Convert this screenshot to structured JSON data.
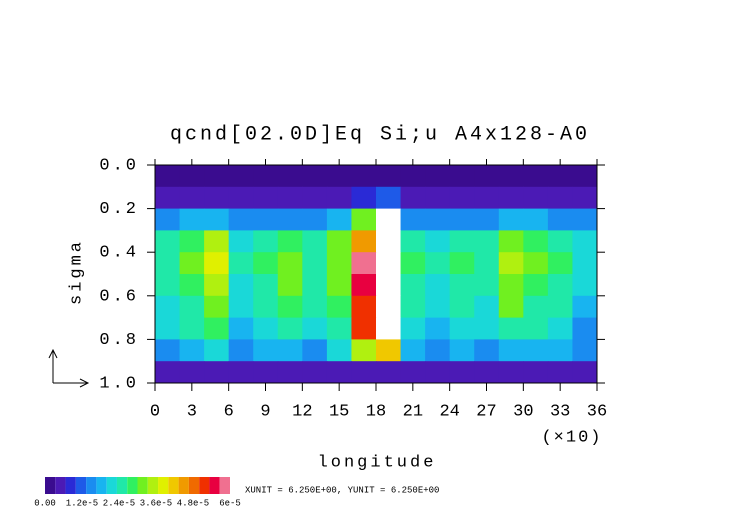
{
  "chart_data": {
    "type": "heatmap",
    "title": "qcnd[02.0D]Eq Si;u A4x128-A0",
    "x_label": "longitude",
    "x_scale_note": "(×10)",
    "y_label": "sigma",
    "footer": "XUNIT = 6.250E+00, YUNIT = 6.250E+00",
    "xlim": [
      0,
      36
    ],
    "xticks": [
      0,
      3,
      6,
      9,
      12,
      15,
      18,
      21,
      24,
      27,
      30,
      33,
      36
    ],
    "ylim": [
      1,
      0
    ],
    "yticks": [
      {
        "value": 0,
        "label": "0.0"
      },
      0.2,
      0.4,
      0.6,
      0.8,
      {
        "value": 1,
        "label": "1.0"
      }
    ],
    "x": [
      1,
      3,
      5,
      7,
      9,
      11,
      13,
      15,
      17,
      19,
      21,
      23,
      25,
      27,
      29,
      31,
      33,
      35
    ],
    "y": [
      0.05,
      0.15,
      0.25,
      0.35,
      0.45,
      0.55,
      0.65,
      0.75,
      0.85,
      0.95
    ],
    "z": [
      [
        2e-06,
        2e-06,
        2e-06,
        2e-06,
        2e-06,
        2e-06,
        2e-06,
        2e-06,
        2e-06,
        2e-06,
        2e-06,
        2e-06,
        2e-06,
        2e-06,
        2e-06,
        2e-06,
        2e-06,
        2e-06
      ],
      [
        5e-06,
        6e-06,
        6e-06,
        5e-06,
        5e-06,
        5e-06,
        5e-06,
        6e-06,
        8e-06,
        1e-05,
        6e-06,
        5e-06,
        5e-06,
        5e-06,
        6e-06,
        6e-06,
        5e-06,
        5e-06
      ],
      [
        1.4e-05,
        1.8e-05,
        1.8e-05,
        1.4e-05,
        1.5e-05,
        1.6e-05,
        1.4e-05,
        1.8e-05,
        3e-05,
        7e-05,
        1.6e-05,
        1.4e-05,
        1.5e-05,
        1.4e-05,
        1.8e-05,
        1.7e-05,
        1.5e-05,
        1.4e-05
      ],
      [
        2.4e-05,
        2.8e-05,
        3.4e-05,
        2.2e-05,
        2.6e-05,
        2.8e-05,
        2.4e-05,
        3e-05,
        4.5e-05,
        7e-05,
        2.6e-05,
        2.2e-05,
        2.6e-05,
        2.4e-05,
        3e-05,
        2.8e-05,
        2.6e-05,
        2e-05
      ],
      [
        2.6e-05,
        3e-05,
        3.8e-05,
        2.4e-05,
        2.8e-05,
        3.2e-05,
        2.6e-05,
        3.2e-05,
        5.8e-05,
        7e-05,
        2.8e-05,
        2.4e-05,
        2.8e-05,
        2.6e-05,
        3.4e-05,
        3e-05,
        2.8e-05,
        2.2e-05
      ],
      [
        2.4e-05,
        2.8e-05,
        3.6e-05,
        2.2e-05,
        2.6e-05,
        3e-05,
        2.6e-05,
        3e-05,
        5.5e-05,
        7e-05,
        2.6e-05,
        2.2e-05,
        2.6e-05,
        2.4e-05,
        3.2e-05,
        2.8e-05,
        2.6e-05,
        2e-05
      ],
      [
        2.2e-05,
        2.6e-05,
        3.2e-05,
        2e-05,
        2.4e-05,
        2.8e-05,
        2.4e-05,
        2.8e-05,
        5e-05,
        7e-05,
        2.4e-05,
        2e-05,
        2.4e-05,
        2.2e-05,
        3e-05,
        2.6e-05,
        2.4e-05,
        1.8e-05
      ],
      [
        2e-05,
        2.4e-05,
        2.8e-05,
        1.8e-05,
        2.2e-05,
        2.4e-05,
        2.2e-05,
        2.6e-05,
        5.2e-05,
        7e-05,
        2.2e-05,
        1.8e-05,
        2.2e-05,
        2e-05,
        2.6e-05,
        2.4e-05,
        2.2e-05,
        1.6e-05
      ],
      [
        1.6e-05,
        1.8e-05,
        2e-05,
        1.5e-05,
        1.7e-05,
        1.8e-05,
        1.6e-05,
        2e-05,
        3.6e-05,
        4e-05,
        1.7e-05,
        1.5e-05,
        1.7e-05,
        1.6e-05,
        1.8e-05,
        1.8e-05,
        1.7e-05,
        1.4e-05
      ],
      [
        4e-06,
        5e-06,
        5e-06,
        4e-06,
        4e-06,
        5e-06,
        4e-06,
        5e-06,
        6e-06,
        6e-06,
        4e-06,
        4e-06,
        4e-06,
        4e-06,
        5e-06,
        5e-06,
        4e-06,
        4e-06
      ]
    ],
    "clim": [
      0,
      6e-05
    ],
    "colors": [
      "#3a0c8f",
      "#4b1ab5",
      "#2a2ad6",
      "#1e5ae8",
      "#1a8cf0",
      "#18b4f0",
      "#1ad8d8",
      "#20e8a8",
      "#30f060",
      "#70f020",
      "#b0f010",
      "#e0f000",
      "#f0c800",
      "#f09a00",
      "#f06a00",
      "#f03000",
      "#e80040",
      "#f07090"
    ],
    "colorbar_ticks": [
      {
        "value": 0,
        "label": "0.00"
      },
      {
        "value": 1.2e-05,
        "label": "1.2e-5"
      },
      {
        "value": 2.4e-05,
        "label": "2.4e-5"
      },
      {
        "value": 3.6e-05,
        "label": "3.6e-5"
      },
      {
        "value": 4.8e-05,
        "label": "4.8e-5"
      },
      {
        "value": 6e-05,
        "label": "6e-5"
      }
    ]
  }
}
